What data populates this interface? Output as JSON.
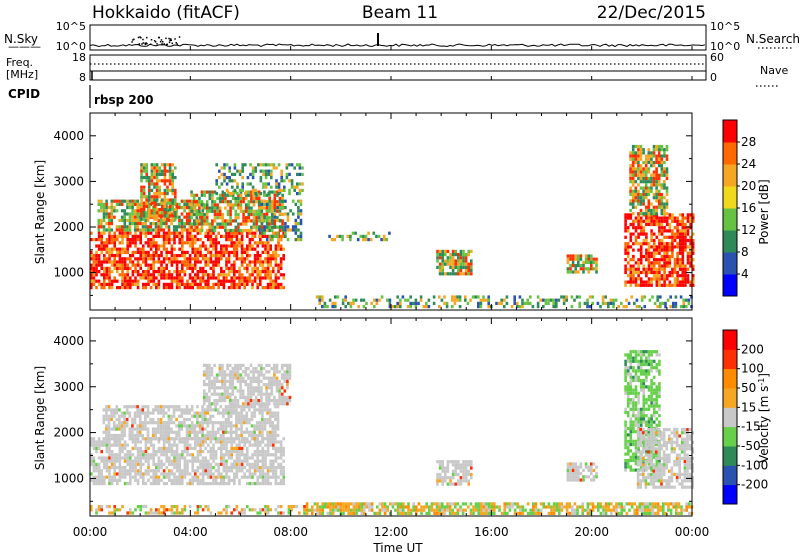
{
  "header": {
    "station": "Hokkaido (fitACF)",
    "beam": "Beam 11",
    "date": "22/Dec/2015"
  },
  "strip": {
    "nsky_label": "N.Sky",
    "nsky_ticks": [
      "10^5",
      "10^0"
    ],
    "nsearch_label": "N.Search",
    "freq_label_1": "Freq.",
    "freq_label_2": "[MHz]",
    "freq_ticks": [
      "18",
      "8"
    ],
    "nave_label": "Nave",
    "nave_ticks": [
      "60",
      "0"
    ],
    "cpid_label": "CPID",
    "cpid_value": "rbsp 200"
  },
  "chart_data": [
    {
      "type": "heatmap",
      "name": "power",
      "ylabel": "Slant Range [km]",
      "xlabel": "",
      "x_range_hours": [
        0,
        24
      ],
      "ylim": [
        180,
        4500
      ],
      "y_ticks": [
        1000,
        2000,
        3000,
        4000
      ],
      "colorbar": {
        "label": "Power [dB]",
        "ticks": [
          "4",
          "8",
          "12",
          "16",
          "20",
          "24",
          "28"
        ],
        "colors": [
          "#0000ff",
          "#2a52b0",
          "#2e8b57",
          "#66c341",
          "#f2d81d",
          "#f5a623",
          "#ff6a00",
          "#ff0000"
        ]
      },
      "echo_regions": [
        {
          "t0": 0.0,
          "t1": 7.7,
          "r0": 700,
          "r1": 1900,
          "level": "high"
        },
        {
          "t0": 0.3,
          "t1": 4.5,
          "r0": 1900,
          "r1": 2600,
          "level": "mid"
        },
        {
          "t0": 4.0,
          "t1": 7.7,
          "r0": 1900,
          "r1": 2800,
          "level": "mid"
        },
        {
          "t0": 2.0,
          "t1": 3.4,
          "r0": 2200,
          "r1": 3400,
          "level": "mid"
        },
        {
          "t0": 5.0,
          "t1": 8.5,
          "r0": 2700,
          "r1": 3400,
          "level": "low"
        },
        {
          "t0": 6.7,
          "t1": 8.4,
          "r0": 1700,
          "r1": 2600,
          "level": "low"
        },
        {
          "t0": 13.8,
          "t1": 15.2,
          "r0": 1000,
          "r1": 1500,
          "level": "mid"
        },
        {
          "t0": 19.0,
          "t1": 20.2,
          "r0": 1000,
          "r1": 1400,
          "level": "mid"
        },
        {
          "t0": 21.3,
          "t1": 24.0,
          "r0": 700,
          "r1": 2300,
          "level": "high"
        },
        {
          "t0": 21.5,
          "t1": 23.0,
          "r0": 2300,
          "r1": 3800,
          "level": "mid"
        },
        {
          "t0": 9.0,
          "t1": 24.0,
          "r0": 250,
          "r1": 500,
          "level": "low"
        },
        {
          "t0": 9.5,
          "t1": 12.0,
          "r0": 1700,
          "r1": 1900,
          "level": "low"
        }
      ]
    },
    {
      "type": "heatmap",
      "name": "velocity",
      "ylabel": "Slant Range [km]",
      "xlabel": "Time UT",
      "x_range_hours": [
        0,
        24
      ],
      "x_ticks": [
        "00:00",
        "04:00",
        "08:00",
        "12:00",
        "16:00",
        "20:00",
        "00:00"
      ],
      "ylim": [
        180,
        4500
      ],
      "y_ticks": [
        1000,
        2000,
        3000,
        4000
      ],
      "colorbar": {
        "label": "Velocity [m s",
        "label_sup": "-1",
        "label_end": "]",
        "ticks": [
          "200",
          "100",
          "50",
          "15",
          "-15",
          "-50",
          "-100",
          "-200"
        ],
        "colors": [
          "#0000ff",
          "#2a52b0",
          "#2e8b57",
          "#66d04a",
          "#c8c8c8",
          "#f5a623",
          "#ff8c00",
          "#ff3000",
          "#ff0000"
        ]
      },
      "echo_regions": [
        {
          "t0": 0.0,
          "t1": 7.7,
          "r0": 900,
          "r1": 1900,
          "level": "grey"
        },
        {
          "t0": 0.5,
          "t1": 7.5,
          "r0": 1900,
          "r1": 2600,
          "level": "grey"
        },
        {
          "t0": 4.5,
          "t1": 8.0,
          "r0": 2600,
          "r1": 3500,
          "level": "grey"
        },
        {
          "t0": 13.8,
          "t1": 15.2,
          "r0": 900,
          "r1": 1400,
          "level": "grey"
        },
        {
          "t0": 19.0,
          "t1": 20.2,
          "r0": 1000,
          "r1": 1350,
          "level": "grey"
        },
        {
          "t0": 21.3,
          "t1": 22.7,
          "r0": 1200,
          "r1": 3800,
          "level": "green"
        },
        {
          "t0": 21.8,
          "t1": 24.0,
          "r0": 800,
          "r1": 2100,
          "level": "grey"
        },
        {
          "t0": 8.5,
          "t1": 24.0,
          "r0": 230,
          "r1": 480,
          "level": "mixed"
        },
        {
          "t0": 0.0,
          "t1": 8.5,
          "r0": 230,
          "r1": 420,
          "level": "sparse"
        }
      ]
    }
  ]
}
